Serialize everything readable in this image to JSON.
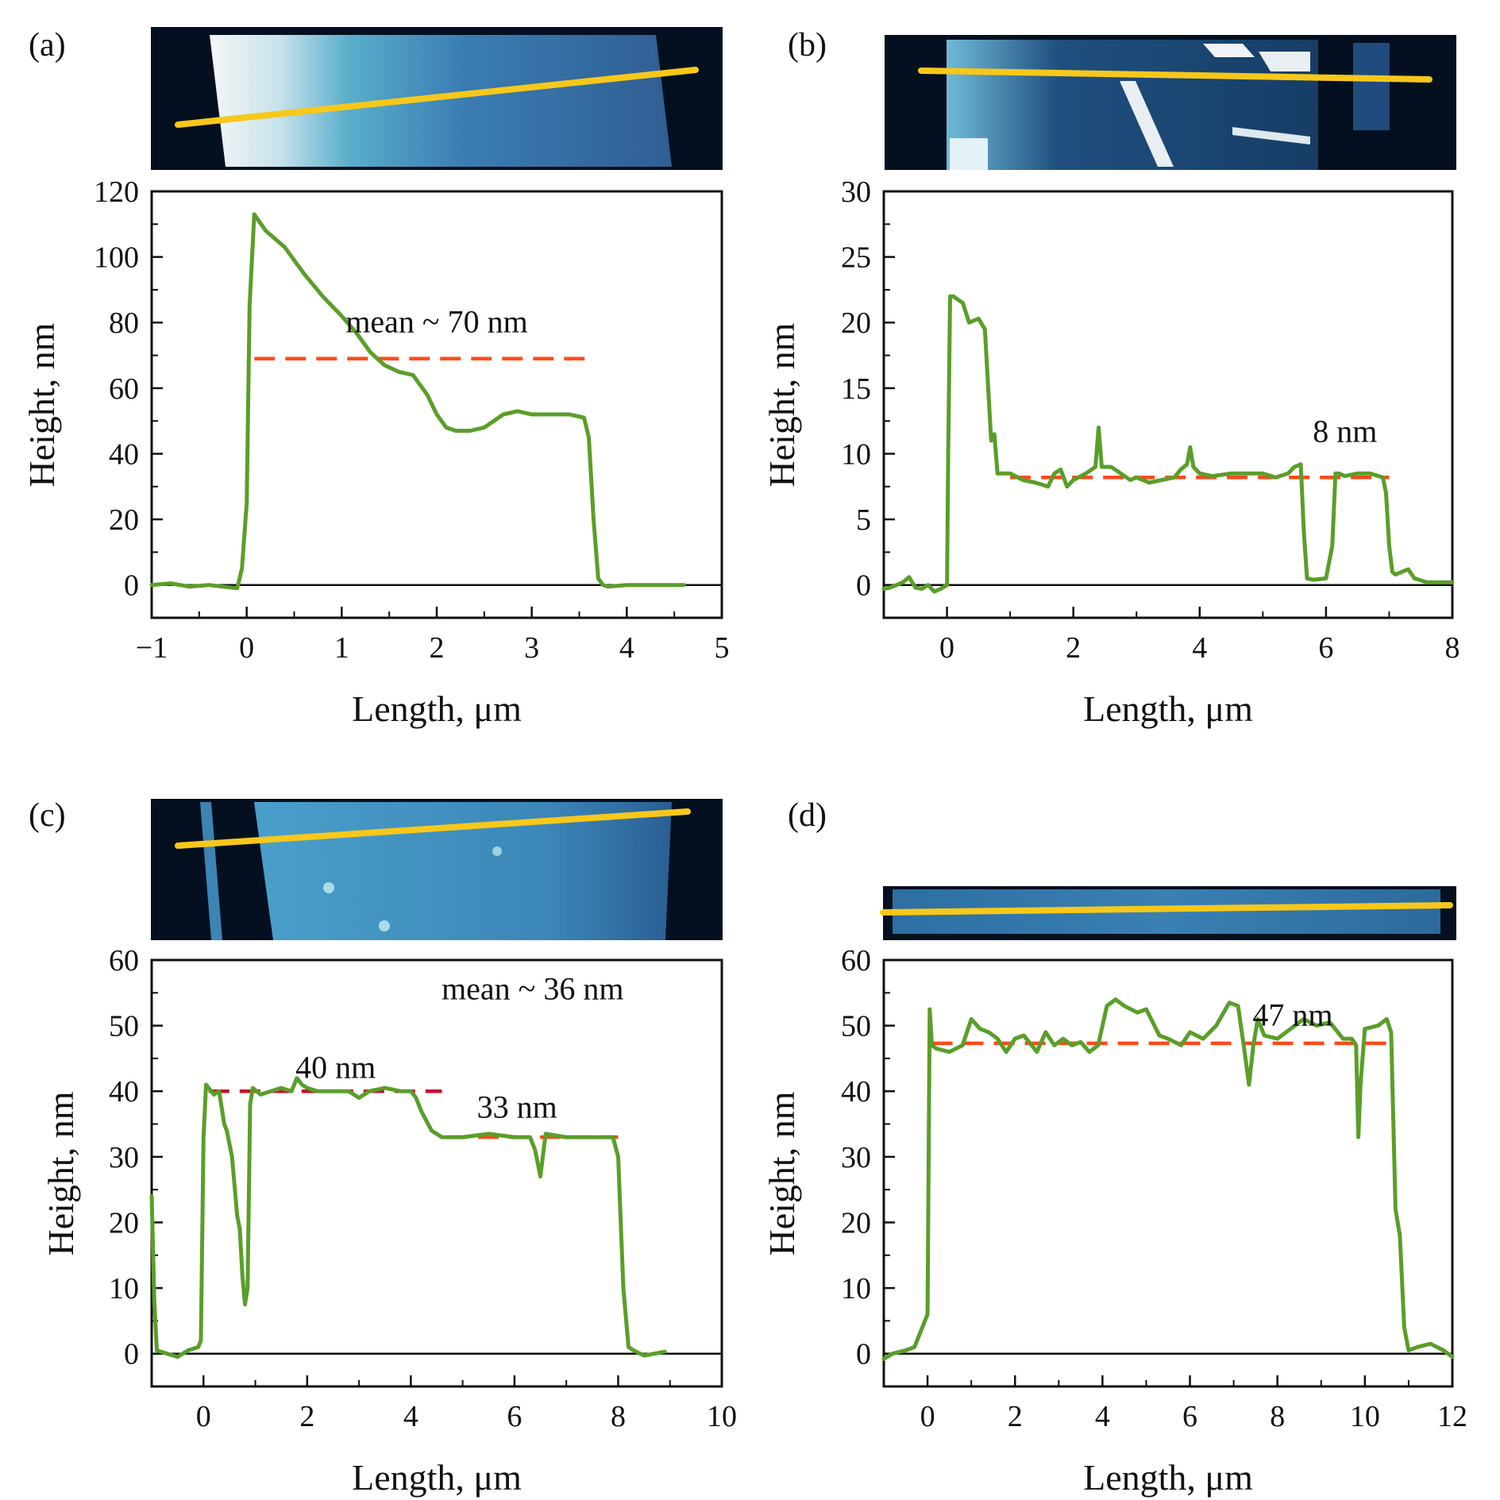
{
  "figure": {
    "colors": {
      "profile": "#5a9e2a",
      "mean_line": "#ff4a1c",
      "mean_line_dark": "#c8102e",
      "scan_line": "#f7c81a",
      "axis": "#111111"
    },
    "afm_colormap": [
      "#04101f",
      "#1a3d63",
      "#3f7fb0",
      "#7fc3d9",
      "#f4f6f7"
    ]
  },
  "chart_data": [
    {
      "id": "a",
      "panel_label": "(a)",
      "type": "line",
      "xlabel": "Length, μm",
      "ylabel": "Height, nm",
      "xlim": [
        -1,
        5
      ],
      "ylim": [
        -10,
        120
      ],
      "xticks": [
        -1,
        0,
        1,
        2,
        3,
        4,
        5
      ],
      "xtick_labels": [
        "−1",
        "0",
        "1",
        "2",
        "3",
        "4",
        "5"
      ],
      "yticks": [
        0,
        20,
        40,
        60,
        80,
        100,
        120
      ],
      "ytick_labels": [
        "0",
        "20",
        "40",
        "60",
        "80",
        "100",
        "120"
      ],
      "series": [
        {
          "name": "height profile",
          "x": [
            -1.0,
            -0.8,
            -0.6,
            -0.4,
            -0.25,
            -0.1,
            -0.05,
            0.0,
            0.03,
            0.08,
            0.2,
            0.4,
            0.6,
            0.8,
            1.0,
            1.15,
            1.3,
            1.45,
            1.6,
            1.75,
            1.9,
            2.0,
            2.1,
            2.2,
            2.35,
            2.5,
            2.7,
            2.85,
            3.0,
            3.2,
            3.4,
            3.55,
            3.6,
            3.65,
            3.7,
            3.75,
            3.8,
            4.0,
            4.3,
            4.6
          ],
          "y": [
            0,
            0.5,
            -0.5,
            0,
            -0.5,
            -1,
            5,
            25,
            85,
            113,
            108,
            103,
            95,
            88,
            82,
            77,
            71,
            67,
            65,
            64,
            58,
            52,
            48,
            47,
            47,
            48,
            52,
            53,
            52,
            52,
            52,
            51,
            45,
            20,
            2,
            0,
            -0.5,
            0,
            0,
            0
          ]
        }
      ],
      "mean_line": {
        "y": 69,
        "x": [
          0.08,
          3.6
        ]
      },
      "annotations": [
        {
          "text": "mean ~ 70 nm",
          "x": 2.0,
          "y": 77
        }
      ]
    },
    {
      "id": "b",
      "panel_label": "(b)",
      "type": "line",
      "xlabel": "Length, μm",
      "ylabel": "Height, nm",
      "xlim": [
        -1,
        8
      ],
      "ylim": [
        -2.5,
        30
      ],
      "xticks": [
        0,
        2,
        4,
        6,
        8
      ],
      "xtick_labels": [
        "0",
        "2",
        "4",
        "6",
        "8"
      ],
      "yticks": [
        0,
        5,
        10,
        15,
        20,
        25,
        30
      ],
      "ytick_labels": [
        "0",
        "5",
        "10",
        "15",
        "20",
        "25",
        "30"
      ],
      "series": [
        {
          "name": "height profile",
          "x": [
            -1.0,
            -0.9,
            -0.7,
            -0.6,
            -0.5,
            -0.4,
            -0.3,
            -0.2,
            -0.1,
            0.0,
            0.02,
            0.05,
            0.1,
            0.25,
            0.35,
            0.5,
            0.6,
            0.7,
            0.75,
            0.8,
            0.85,
            0.9,
            1.0,
            1.2,
            1.4,
            1.6,
            1.7,
            1.8,
            1.9,
            2.0,
            2.2,
            2.35,
            2.4,
            2.45,
            2.6,
            2.75,
            2.9,
            3.0,
            3.2,
            3.4,
            3.6,
            3.7,
            3.8,
            3.85,
            3.9,
            4.0,
            4.2,
            4.5,
            4.8,
            5.0,
            5.2,
            5.4,
            5.5,
            5.6,
            5.65,
            5.7,
            5.8,
            6.0,
            6.1,
            6.15,
            6.2,
            6.3,
            6.5,
            6.7,
            6.9,
            6.95,
            7.0,
            7.05,
            7.1,
            7.3,
            7.4,
            7.6,
            8.0
          ],
          "y": [
            -0.3,
            -0.2,
            0.2,
            0.6,
            -0.2,
            -0.3,
            0.0,
            -0.5,
            -0.3,
            0.0,
            10.0,
            22.0,
            22.0,
            21.5,
            20.0,
            20.3,
            19.5,
            11.0,
            11.5,
            8.5,
            8.5,
            8.5,
            8.5,
            8.0,
            7.8,
            7.5,
            8.5,
            8.8,
            7.5,
            8.0,
            8.5,
            9.0,
            12.0,
            9.0,
            9.0,
            8.5,
            8.0,
            8.2,
            7.8,
            8.0,
            8.2,
            8.8,
            9.2,
            10.5,
            9.0,
            8.5,
            8.3,
            8.5,
            8.5,
            8.5,
            8.2,
            8.5,
            9.0,
            9.2,
            4.0,
            0.5,
            0.4,
            0.5,
            3.0,
            8.5,
            8.5,
            8.3,
            8.5,
            8.5,
            8.2,
            7.0,
            3.0,
            1.0,
            0.8,
            1.2,
            0.5,
            0.2,
            0.2
          ]
        }
      ],
      "mean_line": {
        "y": 8.2,
        "x": [
          1.0,
          7.0
        ]
      },
      "annotations": [
        {
          "text": "8 nm",
          "x": 6.3,
          "y": 10.9
        }
      ]
    },
    {
      "id": "c",
      "panel_label": "(c)",
      "type": "line",
      "xlabel": "Length, μm",
      "ylabel": "Height, nm",
      "xlim": [
        -1,
        10
      ],
      "ylim": [
        -5,
        60
      ],
      "xticks": [
        0,
        2,
        4,
        6,
        8,
        10
      ],
      "xtick_labels": [
        "0",
        "2",
        "4",
        "6",
        "8",
        "10"
      ],
      "yticks": [
        0,
        10,
        20,
        30,
        40,
        50,
        60
      ],
      "ytick_labels": [
        "0",
        "10",
        "20",
        "30",
        "40",
        "50",
        "60"
      ],
      "series": [
        {
          "name": "height profile",
          "x": [
            -1.0,
            -0.95,
            -0.9,
            -0.7,
            -0.5,
            -0.3,
            -0.1,
            -0.05,
            0.0,
            0.05,
            0.1,
            0.2,
            0.3,
            0.4,
            0.45,
            0.55,
            0.65,
            0.7,
            0.75,
            0.8,
            0.85,
            0.9,
            0.95,
            1.1,
            1.3,
            1.5,
            1.7,
            1.8,
            1.9,
            2.0,
            2.2,
            2.5,
            2.8,
            3.0,
            3.2,
            3.5,
            3.8,
            4.0,
            4.1,
            4.2,
            4.4,
            4.6,
            5.0,
            5.5,
            6.0,
            6.3,
            6.4,
            6.5,
            6.6,
            7.0,
            7.5,
            7.9,
            8.0,
            8.1,
            8.2,
            8.3,
            8.5,
            8.7,
            8.9
          ],
          "y": [
            24.0,
            8.0,
            0.5,
            0.0,
            -0.5,
            0.5,
            1.0,
            2.0,
            33.0,
            41.0,
            40.5,
            39.5,
            40.0,
            35.0,
            34.0,
            30.0,
            21.0,
            19.0,
            12.0,
            7.5,
            10.0,
            38.0,
            40.5,
            39.5,
            40.0,
            40.5,
            40.0,
            42.0,
            41.0,
            40.5,
            40.0,
            40.0,
            40.0,
            39.0,
            40.0,
            40.5,
            40.0,
            40.0,
            39.0,
            37.0,
            34.0,
            33.0,
            33.0,
            33.5,
            33.0,
            33.0,
            31.0,
            27.0,
            33.5,
            33.0,
            33.0,
            33.0,
            30.0,
            10.0,
            1.0,
            0.5,
            -0.3,
            0.0,
            0.3
          ]
        }
      ],
      "mean_lines": [
        {
          "y": 40,
          "x": [
            0.1,
            4.6
          ],
          "label": "40 nm",
          "style": "dark"
        },
        {
          "y": 33,
          "x": [
            4.7,
            8.0
          ],
          "label": "33 nm",
          "style": "light"
        }
      ],
      "annotations": [
        {
          "text": "mean ~ 36 nm",
          "x": 6.35,
          "y": 54
        },
        {
          "text": "40 nm",
          "x": 2.55,
          "y": 42
        },
        {
          "text": "33 nm",
          "x": 6.05,
          "y": 36
        }
      ]
    },
    {
      "id": "d",
      "panel_label": "(d)",
      "type": "line",
      "xlabel": "Length, μm",
      "ylabel": "Height, nm",
      "xlim": [
        -1,
        12
      ],
      "ylim": [
        -5,
        60
      ],
      "xticks": [
        0,
        2,
        4,
        6,
        8,
        10,
        12
      ],
      "xtick_labels": [
        "0",
        "2",
        "4",
        "6",
        "8",
        "10",
        "12"
      ],
      "yticks": [
        0,
        10,
        20,
        30,
        40,
        50,
        60
      ],
      "ytick_labels": [
        "0",
        "10",
        "20",
        "30",
        "40",
        "50",
        "60"
      ],
      "series": [
        {
          "name": "height profile",
          "x": [
            -1.0,
            -0.8,
            -0.5,
            -0.3,
            0.0,
            0.05,
            0.1,
            0.2,
            0.5,
            0.8,
            1.0,
            1.2,
            1.4,
            1.6,
            1.8,
            2.0,
            2.2,
            2.5,
            2.7,
            2.9,
            3.1,
            3.3,
            3.5,
            3.7,
            3.9,
            4.1,
            4.3,
            4.5,
            4.8,
            5.0,
            5.3,
            5.5,
            5.8,
            6.0,
            6.3,
            6.6,
            6.9,
            7.1,
            7.25,
            7.35,
            7.45,
            7.55,
            7.7,
            8.0,
            8.3,
            8.6,
            8.9,
            9.2,
            9.5,
            9.7,
            9.8,
            9.85,
            9.9,
            10.0,
            10.3,
            10.5,
            10.6,
            10.7,
            10.8,
            10.9,
            11.0,
            11.2,
            11.5,
            11.8,
            12.0
          ],
          "y": [
            -0.8,
            0.0,
            0.5,
            1.0,
            6.0,
            52.5,
            47.0,
            46.5,
            46.0,
            47.0,
            51.0,
            49.5,
            49.0,
            48.0,
            46.0,
            48.0,
            48.5,
            46.0,
            49.0,
            47.0,
            48.0,
            47.0,
            47.5,
            46.0,
            47.0,
            53.0,
            54.0,
            53.0,
            52.0,
            52.5,
            48.5,
            48.0,
            47.0,
            49.0,
            48.0,
            50.0,
            53.5,
            53.0,
            46.0,
            41.0,
            47.0,
            51.0,
            48.5,
            48.0,
            49.5,
            51.0,
            50.0,
            50.5,
            48.0,
            48.0,
            47.0,
            33.0,
            41.0,
            49.5,
            50.0,
            51.0,
            49.0,
            22.0,
            18.0,
            4.0,
            0.5,
            1.0,
            1.5,
            0.5,
            -0.5
          ]
        }
      ],
      "mean_line": {
        "y": 47.3,
        "x": [
          0.1,
          10.6
        ]
      },
      "annotations": [
        {
          "text": "47 nm",
          "x": 8.35,
          "y": 50
        }
      ]
    }
  ]
}
